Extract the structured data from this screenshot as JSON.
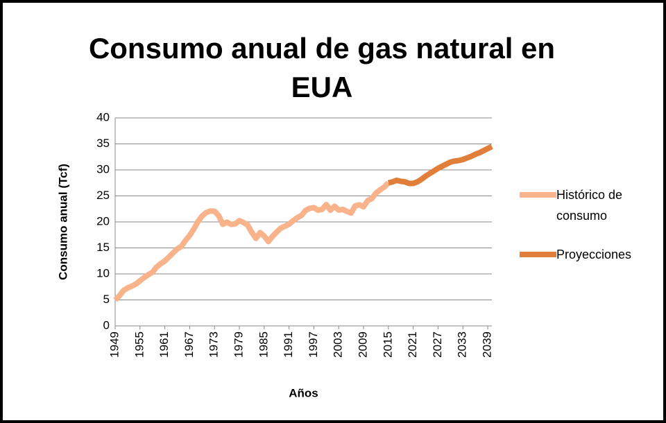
{
  "chart_data": {
    "type": "line",
    "title": "Consumo anual de gas natural en EUA",
    "x_label": "Años",
    "y_label": "Consumo anual (Tcf)",
    "x": [
      1949,
      1950,
      1951,
      1952,
      1953,
      1954,
      1955,
      1956,
      1957,
      1958,
      1959,
      1960,
      1961,
      1962,
      1963,
      1964,
      1965,
      1966,
      1967,
      1968,
      1969,
      1970,
      1971,
      1972,
      1973,
      1974,
      1975,
      1976,
      1977,
      1978,
      1979,
      1980,
      1981,
      1982,
      1983,
      1984,
      1985,
      1986,
      1987,
      1988,
      1989,
      1990,
      1991,
      1992,
      1993,
      1994,
      1995,
      1996,
      1997,
      1998,
      1999,
      2000,
      2001,
      2002,
      2003,
      2004,
      2005,
      2006,
      2007,
      2008,
      2009,
      2010,
      2011,
      2012,
      2013,
      2014,
      2015,
      2016,
      2017,
      2018,
      2019,
      2020,
      2021,
      2022,
      2023,
      2024,
      2025,
      2026,
      2027,
      2028,
      2029,
      2030,
      2031,
      2032,
      2033,
      2034,
      2035,
      2036,
      2037,
      2038,
      2039,
      2040
    ],
    "series": [
      {
        "name": "Histórico de consumo",
        "color": "#f8b38a",
        "values": [
          4.97,
          5.77,
          6.81,
          7.29,
          7.64,
          8.05,
          8.69,
          9.29,
          9.85,
          10.3,
          11.32,
          11.97,
          12.49,
          13.27,
          14.03,
          14.81,
          15.28,
          16.45,
          17.39,
          18.63,
          20.06,
          21.14,
          21.79,
          22.1,
          22.05,
          21.22,
          19.54,
          19.95,
          19.52,
          19.63,
          20.24,
          19.88,
          19.4,
          18.0,
          16.83,
          17.95,
          17.28,
          16.22,
          17.21,
          18.03,
          18.8,
          19.17,
          19.56,
          20.23,
          20.79,
          21.25,
          22.21,
          22.61,
          22.74,
          22.25,
          22.41,
          23.33,
          22.24,
          23.01,
          22.28,
          22.4,
          22.01,
          21.7,
          23.1,
          23.28,
          22.91,
          24.09,
          24.48,
          25.54,
          26.16,
          26.7,
          27.5,
          null,
          null,
          null,
          null,
          null,
          null,
          null,
          null,
          null,
          null,
          null,
          null,
          null,
          null,
          null,
          null,
          null,
          null,
          null,
          null,
          null,
          null,
          null,
          null,
          null
        ]
      },
      {
        "name": "Proyecciones",
        "color": "#e07e3a",
        "values": [
          null,
          null,
          null,
          null,
          null,
          null,
          null,
          null,
          null,
          null,
          null,
          null,
          null,
          null,
          null,
          null,
          null,
          null,
          null,
          null,
          null,
          null,
          null,
          null,
          null,
          null,
          null,
          null,
          null,
          null,
          null,
          null,
          null,
          null,
          null,
          null,
          null,
          null,
          null,
          null,
          null,
          null,
          null,
          null,
          null,
          null,
          null,
          null,
          null,
          null,
          null,
          null,
          null,
          null,
          null,
          null,
          null,
          null,
          null,
          null,
          null,
          null,
          null,
          null,
          null,
          null,
          27.5,
          27.7,
          28.0,
          27.8,
          27.7,
          27.4,
          27.4,
          27.7,
          28.2,
          28.8,
          29.3,
          29.8,
          30.3,
          30.7,
          31.1,
          31.5,
          31.7,
          31.8,
          32.0,
          32.3,
          32.6,
          33.0,
          33.3,
          33.7,
          34.1,
          34.5
        ]
      }
    ],
    "xlim": [
      1949,
      2040
    ],
    "xticks": [
      1949,
      1955,
      1961,
      1967,
      1973,
      1979,
      1985,
      1991,
      1997,
      2003,
      2009,
      2015,
      2021,
      2027,
      2033,
      2039
    ],
    "ylim": [
      0,
      40
    ],
    "yticks": [
      0,
      5,
      10,
      15,
      20,
      25,
      30,
      35,
      40
    ],
    "grid": true,
    "legend": "right"
  }
}
